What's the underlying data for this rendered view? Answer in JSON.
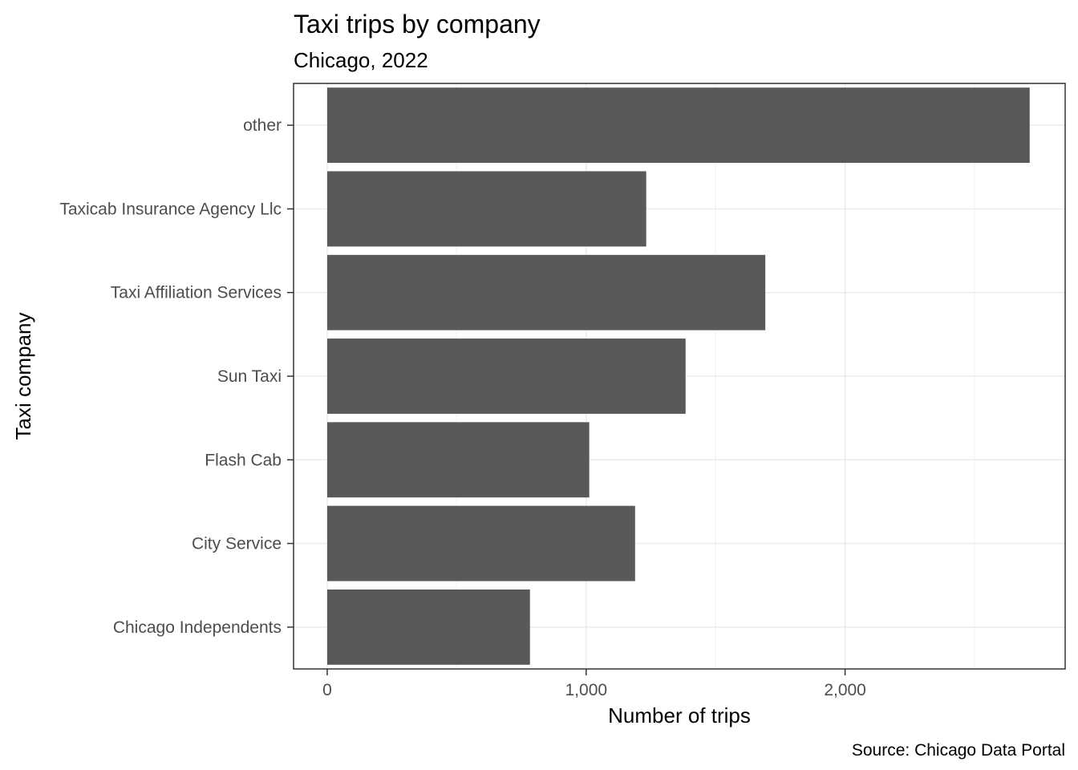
{
  "chart_data": {
    "type": "bar",
    "orientation": "horizontal",
    "title": "Taxi trips by company",
    "subtitle": "Chicago, 2022",
    "caption": "Source: Chicago Data Portal",
    "xlabel": "Number of trips",
    "ylabel": "Taxi company",
    "categories": [
      "other",
      "Taxicab Insurance Agency Llc",
      "Taxi Affiliation Services",
      "Sun Taxi",
      "Flash Cab",
      "City Service",
      "Chicago Independents"
    ],
    "values": [
      2713,
      1232,
      1692,
      1384,
      1012,
      1189,
      783
    ],
    "xlim": [
      -130,
      2850
    ],
    "x_ticks": [
      0,
      1000,
      2000
    ],
    "x_tick_labels": [
      "0",
      "1,000",
      "2,000"
    ],
    "grid": true,
    "bar_color": "#595959"
  }
}
